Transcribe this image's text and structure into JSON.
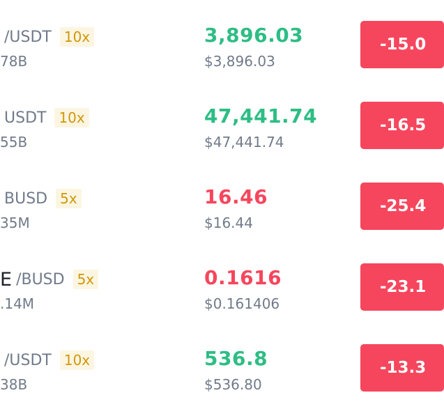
{
  "colors": {
    "up": "#2ebd85",
    "down": "#f6465d",
    "leverage_bg": "#fcf5e1",
    "leverage_text": "#d0980b",
    "secondary_text": "#707a8a"
  },
  "rows": [
    {
      "base": "",
      "quote": "/USDT",
      "leverage": "10x",
      "volume": "78B",
      "price": "3,896.03",
      "price_direction": "up",
      "fiat_price": "$3,896.03",
      "change": "-15.0"
    },
    {
      "base": "",
      "quote": "USDT",
      "leverage": "10x",
      "volume": "55B",
      "price": "47,441.74",
      "price_direction": "up",
      "fiat_price": "$47,441.74",
      "change": "-16.5"
    },
    {
      "base": "",
      "quote": "BUSD",
      "leverage": "5x",
      "volume": "35M",
      "price": "16.46",
      "price_direction": "down",
      "fiat_price": "$16.44",
      "change": "-25.4"
    },
    {
      "base": "E",
      "quote": "/BUSD",
      "leverage": "5x",
      "volume": ".14M",
      "price": "0.1616",
      "price_direction": "down",
      "fiat_price": "$0.161406",
      "change": "-23.1"
    },
    {
      "base": "",
      "quote": "/USDT",
      "leverage": "10x",
      "volume": "38B",
      "price": "536.8",
      "price_direction": "up",
      "fiat_price": "$536.80",
      "change": "-13.3"
    }
  ]
}
